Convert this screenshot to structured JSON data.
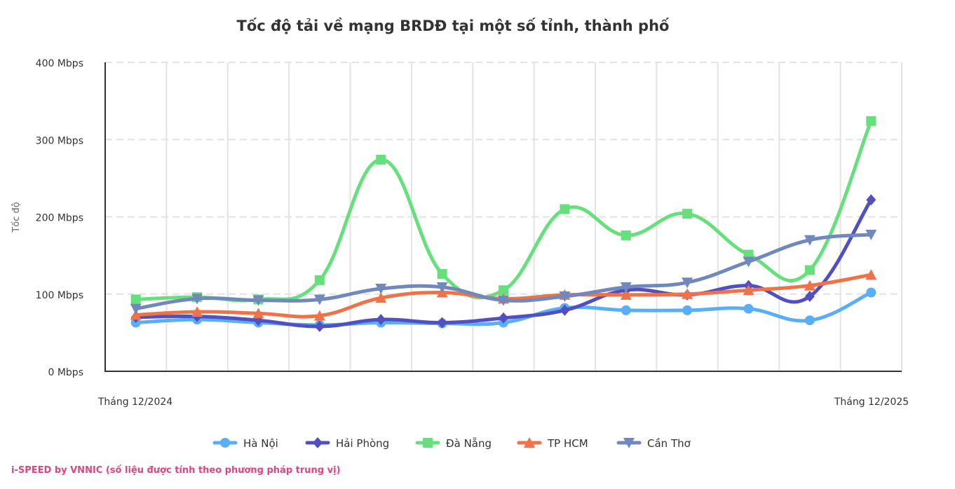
{
  "chart_data": {
    "type": "line",
    "title": "Tốc độ tải về mạng BRDĐ tại một số tỉnh, thành phố",
    "xlabel": "",
    "ylabel": "Tốc độ",
    "x_tick_labels": [
      "Tháng 12/2024",
      "Tháng 12/2025"
    ],
    "x_points": 13,
    "y_ticks": [
      "0 Mbps",
      "100 Mbps",
      "200 Mbps",
      "300 Mbps",
      "400 Mbps"
    ],
    "ylim": [
      0,
      400
    ],
    "grid": true,
    "legend_position": "bottom",
    "series": [
      {
        "name": "Hà Nội",
        "color": "#5aaef5",
        "marker": "circle",
        "values": [
          63,
          67,
          63,
          60,
          63,
          62,
          63,
          82,
          79,
          79,
          81,
          66,
          102
        ]
      },
      {
        "name": "Hải Phòng",
        "color": "#5250c0",
        "marker": "diamond",
        "values": [
          70,
          71,
          66,
          58,
          67,
          63,
          69,
          79,
          105,
          99,
          111,
          97,
          222
        ]
      },
      {
        "name": "Đà Nẵng",
        "color": "#66e07d",
        "marker": "square",
        "values": [
          93,
          96,
          93,
          118,
          274,
          126,
          105,
          210,
          176,
          204,
          151,
          131,
          324
        ]
      },
      {
        "name": "TP HCM",
        "color": "#ef7349",
        "marker": "triangle",
        "values": [
          73,
          77,
          75,
          72,
          95,
          102,
          94,
          99,
          99,
          100,
          105,
          111,
          125
        ]
      },
      {
        "name": "Cần Thơ",
        "color": "#7088bb",
        "marker": "triangle-down",
        "values": [
          81,
          94,
          92,
          93,
          107,
          109,
          92,
          97,
          109,
          115,
          142,
          170,
          177
        ]
      }
    ]
  },
  "footer": "i-SPEED by VNNIC (số liệu được tính theo phương pháp trung vị)"
}
